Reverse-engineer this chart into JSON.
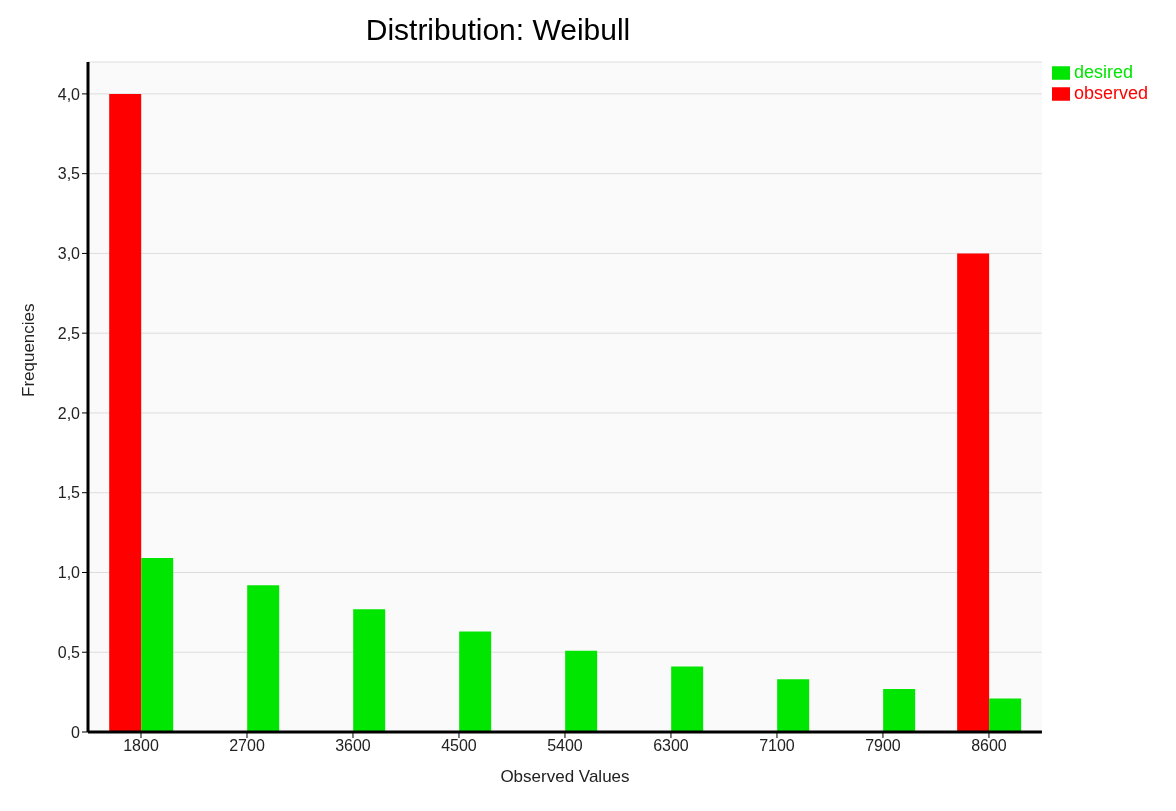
{
  "chart_data": {
    "type": "bar",
    "title": "Distribution: Weibull",
    "xlabel": "Observed Values",
    "ylabel": "Frequencies",
    "categories": [
      "1800",
      "2700",
      "3600",
      "4500",
      "5400",
      "6300",
      "7100",
      "7900",
      "8600"
    ],
    "series": [
      {
        "name": "observed",
        "color": "#ff0000",
        "values": [
          4,
          0,
          0,
          0,
          0,
          0,
          0,
          0,
          3
        ]
      },
      {
        "name": "desired",
        "color": "#00e600",
        "values": [
          1.09,
          0.92,
          0.77,
          0.63,
          0.51,
          0.41,
          0.33,
          0.27,
          0.21
        ]
      }
    ],
    "ylim": [
      0,
      4.2
    ],
    "yticks": [
      {
        "value": 0,
        "label": "0"
      },
      {
        "value": 0.5,
        "label": "0,5"
      },
      {
        "value": 1,
        "label": "1,0"
      },
      {
        "value": 1.5,
        "label": "1,5"
      },
      {
        "value": 2,
        "label": "2,0"
      },
      {
        "value": 2.5,
        "label": "2,5"
      },
      {
        "value": 3,
        "label": "3,0"
      },
      {
        "value": 3.5,
        "label": "3,5"
      },
      {
        "value": 4,
        "label": "4,0"
      }
    ],
    "grid": "y",
    "legend": "top right"
  }
}
